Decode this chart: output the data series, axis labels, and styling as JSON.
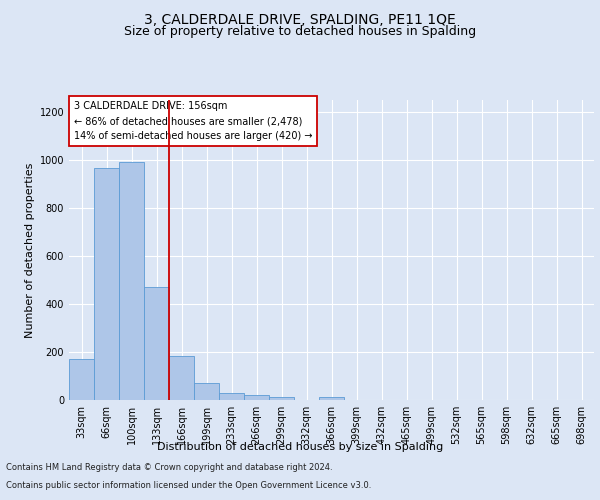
{
  "title1": "3, CALDERDALE DRIVE, SPALDING, PE11 1QE",
  "title2": "Size of property relative to detached houses in Spalding",
  "xlabel": "Distribution of detached houses by size in Spalding",
  "ylabel": "Number of detached properties",
  "bin_labels": [
    "33sqm",
    "66sqm",
    "100sqm",
    "133sqm",
    "166sqm",
    "199sqm",
    "233sqm",
    "266sqm",
    "299sqm",
    "332sqm",
    "366sqm",
    "399sqm",
    "432sqm",
    "465sqm",
    "499sqm",
    "532sqm",
    "565sqm",
    "598sqm",
    "632sqm",
    "665sqm",
    "698sqm"
  ],
  "bar_values": [
    172,
    968,
    992,
    472,
    182,
    72,
    28,
    22,
    14,
    0,
    14,
    0,
    0,
    0,
    0,
    0,
    0,
    0,
    0,
    0,
    0
  ],
  "bar_color": "#aec6e8",
  "bar_edgecolor": "#5b9bd5",
  "vline_x": 3.5,
  "vline_color": "#cc0000",
  "annotation_text": "3 CALDERDALE DRIVE: 156sqm\n← 86% of detached houses are smaller (2,478)\n14% of semi-detached houses are larger (420) →",
  "annotation_box_color": "#ffffff",
  "annotation_box_edgecolor": "#cc0000",
  "ylim": [
    0,
    1250
  ],
  "yticks": [
    0,
    200,
    400,
    600,
    800,
    1000,
    1200
  ],
  "footer_line1": "Contains HM Land Registry data © Crown copyright and database right 2024.",
  "footer_line2": "Contains public sector information licensed under the Open Government Licence v3.0.",
  "bg_color": "#dce6f5",
  "plot_bg_color": "#dce6f5",
  "grid_color": "#ffffff",
  "title1_fontsize": 10,
  "title2_fontsize": 9,
  "tick_fontsize": 7,
  "ylabel_fontsize": 8,
  "xlabel_fontsize": 8,
  "annotation_fontsize": 7,
  "footer_fontsize": 6
}
